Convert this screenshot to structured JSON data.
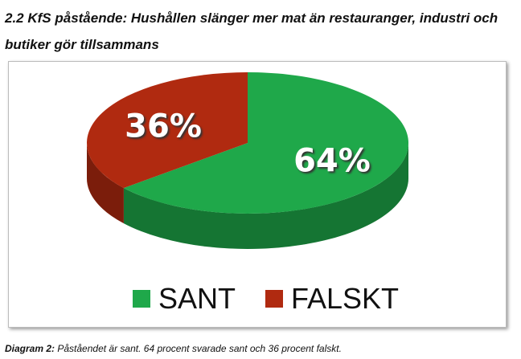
{
  "chart_data": {
    "type": "pie",
    "title": "2.2 KfS påstående: Hushållen slänger mer mat än restauranger, industri och butiker gör tillsammans",
    "categories": [
      "SANT",
      "FALSKT"
    ],
    "values": [
      64,
      36
    ],
    "value_labels": [
      "64%",
      "36%"
    ],
    "colors": [
      "#1fa84a",
      "#b02a10"
    ],
    "caption_label": "Diagram 2:",
    "caption_text": "Påståendet är sant. 64 procent svarade sant och 36 procent falskt."
  }
}
